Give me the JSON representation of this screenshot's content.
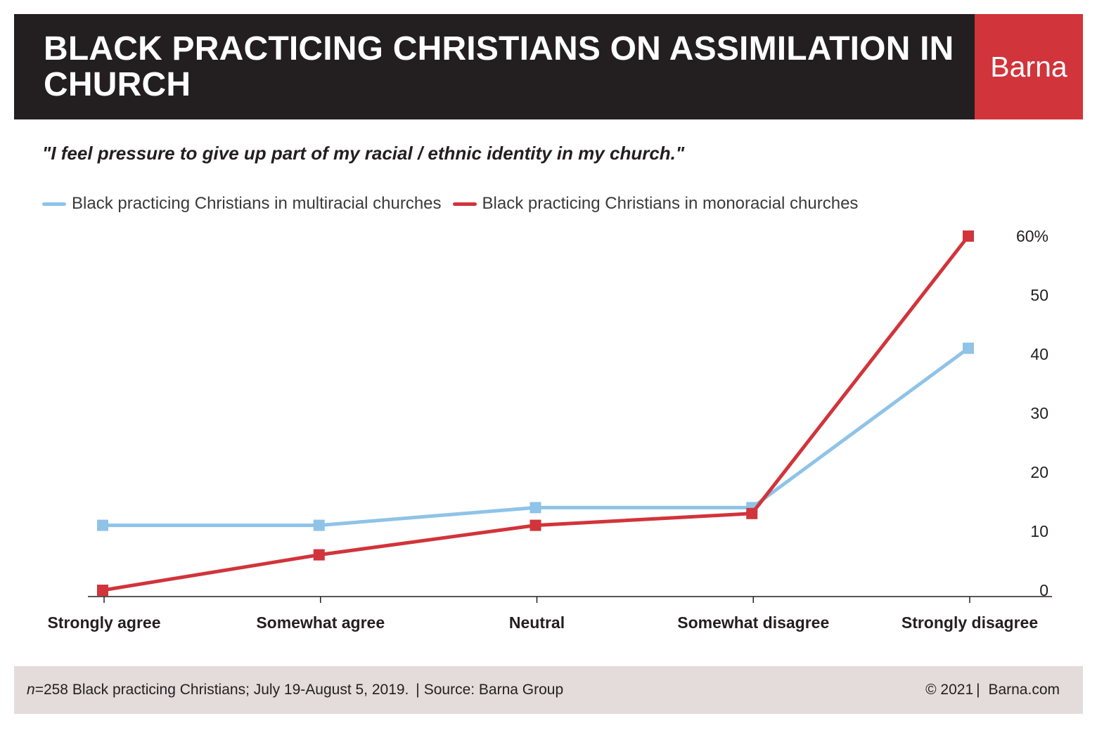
{
  "header": {
    "title": "BLACK PRACTICING CHRISTIANS ON ASSIMILATION IN CHURCH",
    "logo": "Barna",
    "background": "#231f20",
    "logo_background": "#d1343a"
  },
  "subtitle": "\"I feel pressure to give up part of my racial / ethnic identity in my church.\"",
  "footer": {
    "n_prefix": "n",
    "n_value": "=258 Black practicing Christians; July 19-August 5, 2019.",
    "source": "Source: Barna Group",
    "copyright": "© 2021",
    "website": "Barna.com"
  },
  "chart_data": {
    "type": "line",
    "categories": [
      "Strongly agree",
      "Somewhat agree",
      "Neutral",
      "Somewhat disagree",
      "Strongly disagree"
    ],
    "series": [
      {
        "name": "Black practicing Christians in multiracial churches",
        "values": [
          11,
          11,
          14,
          14,
          41
        ],
        "color": "#8fc3e8"
      },
      {
        "name": "Black practicing Christians in monoracial churches",
        "values": [
          0,
          6,
          11,
          13,
          60
        ],
        "color": "#d1343a"
      }
    ],
    "ylim": [
      0,
      60
    ],
    "yticks": [
      0,
      10,
      20,
      30,
      40,
      50,
      60
    ],
    "ytick_labels": [
      "0",
      "10",
      "20",
      "30",
      "40",
      "50",
      "60%"
    ],
    "y_axis_side": "right",
    "grid": false,
    "legend": "top-left",
    "marker": "square"
  }
}
